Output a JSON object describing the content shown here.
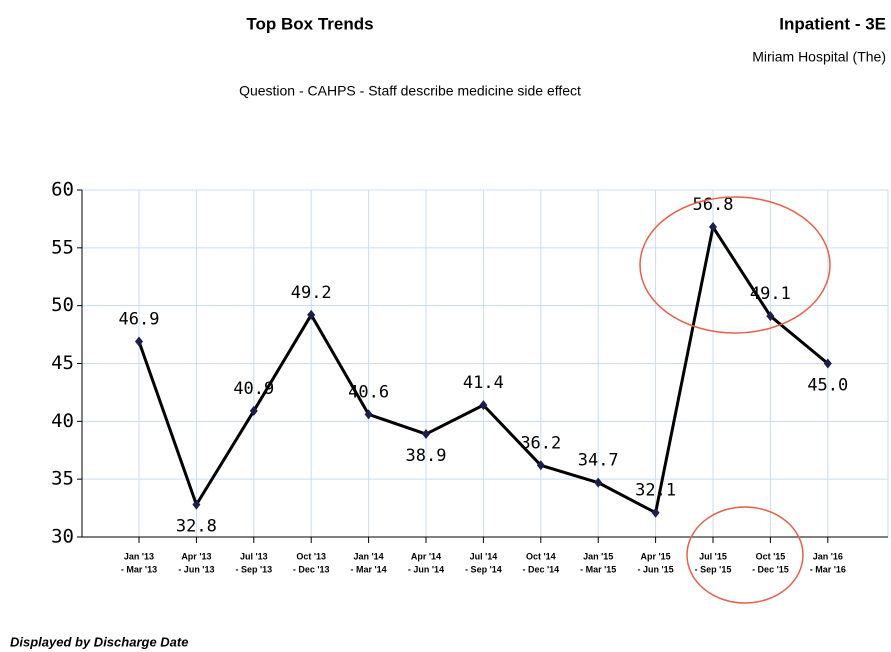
{
  "header": {
    "title": "Top Box Trends",
    "unit": "Inpatient - 3E",
    "facility": "Miriam Hospital (The)"
  },
  "chart_data": {
    "type": "line",
    "subtitle": "Question - CAHPS - Staff describe medicine side effect",
    "categories": [
      [
        "Jan '13",
        "- Mar '13"
      ],
      [
        "Apr '13",
        "- Jun '13"
      ],
      [
        "Jul '13",
        "- Sep '13"
      ],
      [
        "Oct '13",
        "- Dec '13"
      ],
      [
        "Jan '14",
        "- Mar '14"
      ],
      [
        "Apr '14",
        "- Jun '14"
      ],
      [
        "Jul '14",
        "- Sep '14"
      ],
      [
        "Oct '14",
        "- Dec '14"
      ],
      [
        "Jan '15",
        "- Mar '15"
      ],
      [
        "Apr '15",
        "- Jun '15"
      ],
      [
        "Jul '15",
        "- Sep '15"
      ],
      [
        "Oct '15",
        "- Dec '15"
      ],
      [
        "Jan '16",
        "- Mar '16"
      ]
    ],
    "values": [
      46.9,
      32.8,
      40.9,
      49.2,
      40.6,
      38.9,
      41.4,
      36.2,
      34.7,
      32.1,
      56.8,
      49.1,
      45.0
    ],
    "value_labels": [
      "46.9",
      "32.8",
      "40.9",
      "49.2",
      "40.6",
      "38.9",
      "41.4",
      "36.2",
      "34.7",
      "32.1",
      "56.8",
      "49.1",
      "45.0"
    ],
    "color": "#000000",
    "marker_color": "#1a1f4d",
    "ylim": [
      30,
      60
    ],
    "yticks": [
      30,
      35,
      40,
      45,
      50,
      55,
      60
    ],
    "grid": true
  },
  "footer": "Displayed by Discharge Date"
}
